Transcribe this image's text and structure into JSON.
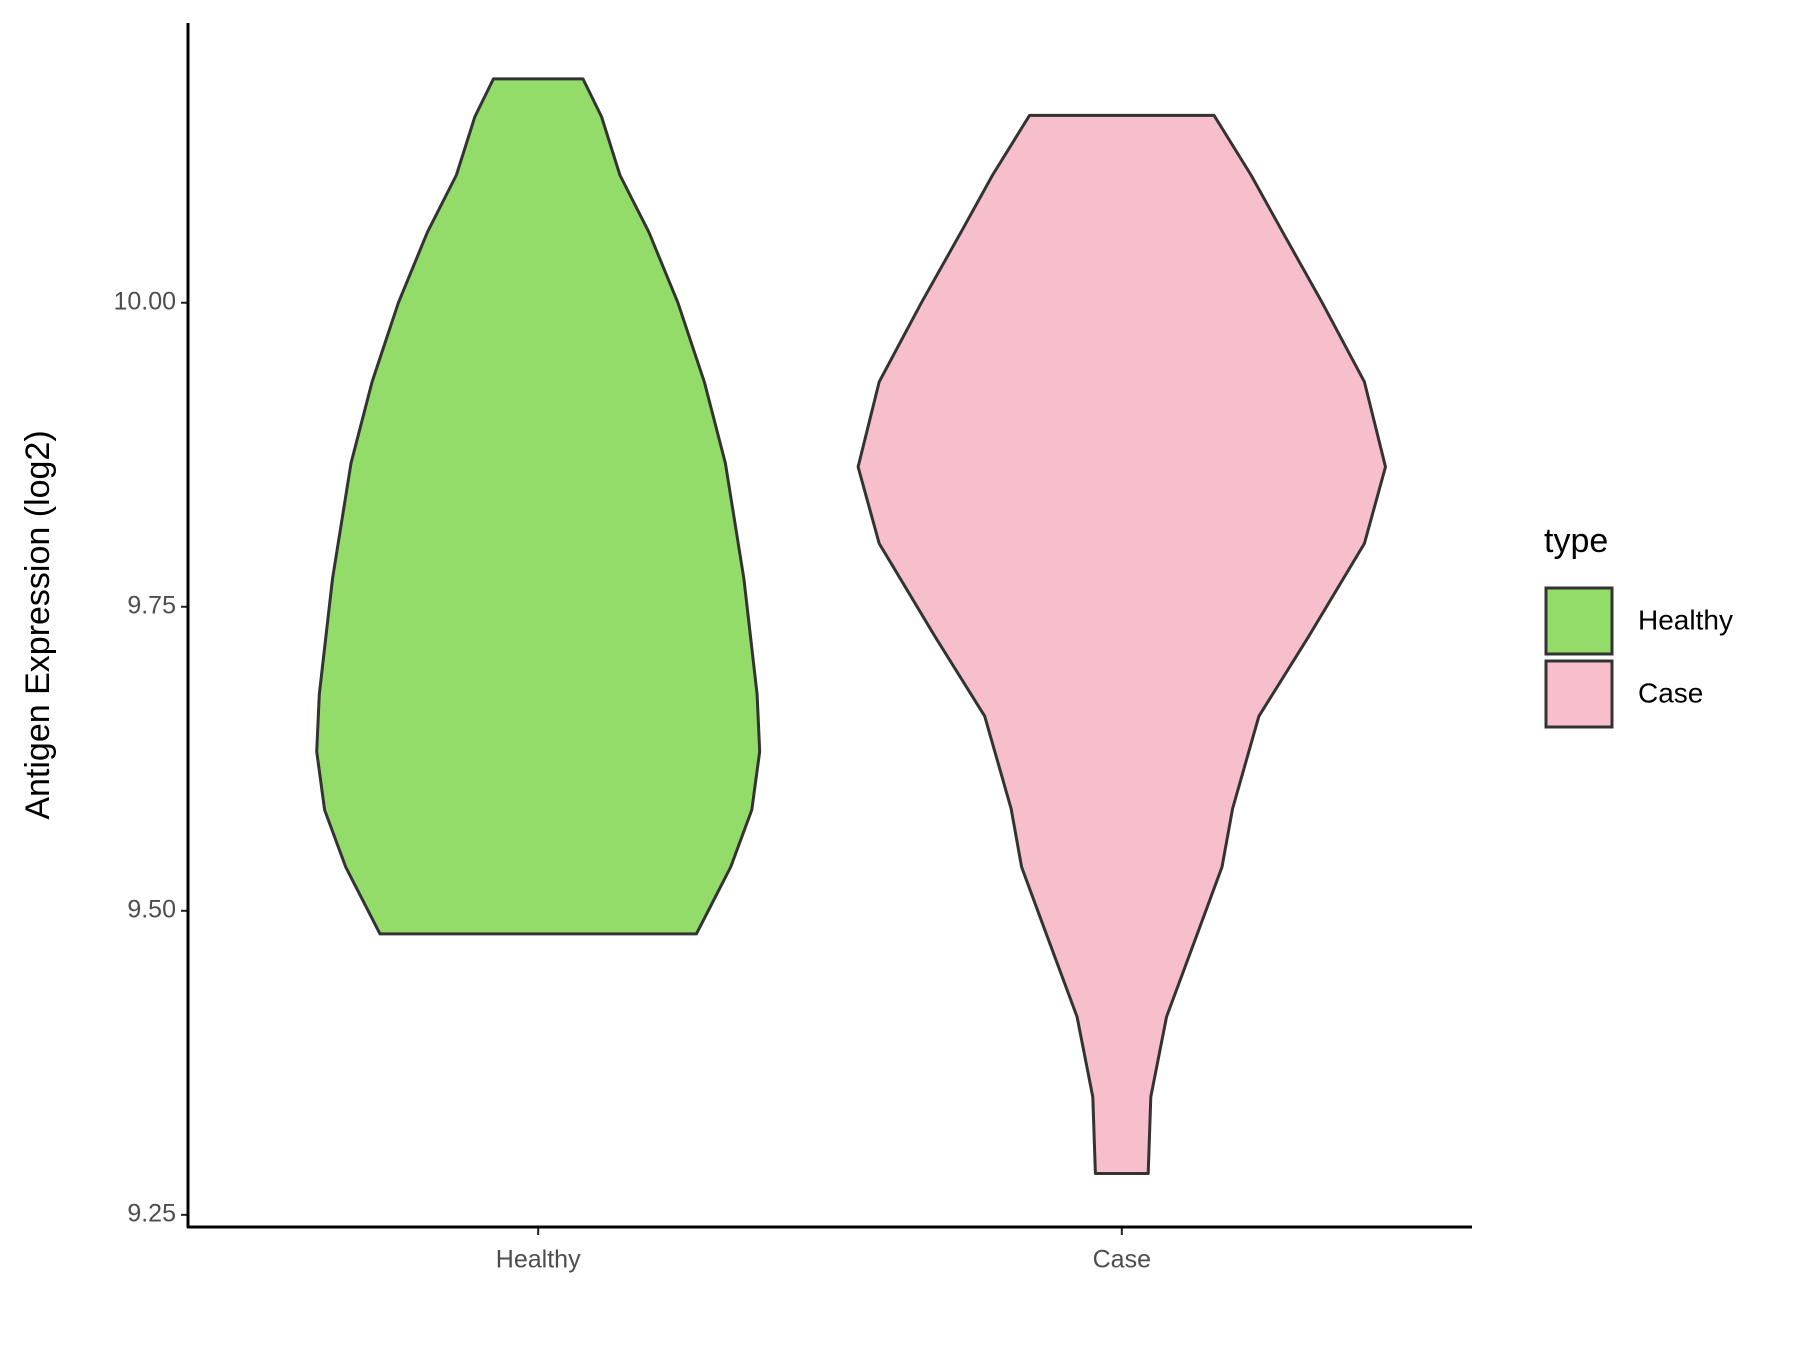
{
  "chart_data": {
    "type": "violin",
    "y_label": "Antigen Expression (log2)",
    "categories": [
      "Healthy",
      "Case"
    ],
    "series": [
      {
        "name": "Healthy",
        "color": "#93dc6a",
        "y": [
          10.184,
          10.153,
          10.105,
          10.058,
          10.0,
          9.935,
          9.868,
          9.773,
          9.678,
          9.631,
          9.583,
          9.536,
          9.481
        ],
        "density": [
          0.17,
          0.24,
          0.31,
          0.42,
          0.53,
          0.63,
          0.71,
          0.78,
          0.83,
          0.84,
          0.81,
          0.73,
          0.6
        ]
      },
      {
        "name": "Case",
        "color": "#f7bfcb",
        "y": [
          10.154,
          10.105,
          10.058,
          10.0,
          9.935,
          9.865,
          9.802,
          9.726,
          9.66,
          9.584,
          9.536,
          9.489,
          9.413,
          9.347,
          9.284
        ],
        "density": [
          0.35,
          0.49,
          0.61,
          0.76,
          0.92,
          1.0,
          0.92,
          0.71,
          0.52,
          0.42,
          0.38,
          0.3,
          0.17,
          0.11,
          0.1
        ]
      }
    ],
    "ylim": [
      9.24,
      10.23
    ],
    "yticks": [
      {
        "value": 9.25,
        "label": "9.25"
      },
      {
        "value": 9.5,
        "label": "9.50"
      },
      {
        "value": 9.75,
        "label": "9.75"
      },
      {
        "value": 10,
        "label": "10.00"
      }
    ],
    "legend_title": "type",
    "legend": "right"
  }
}
